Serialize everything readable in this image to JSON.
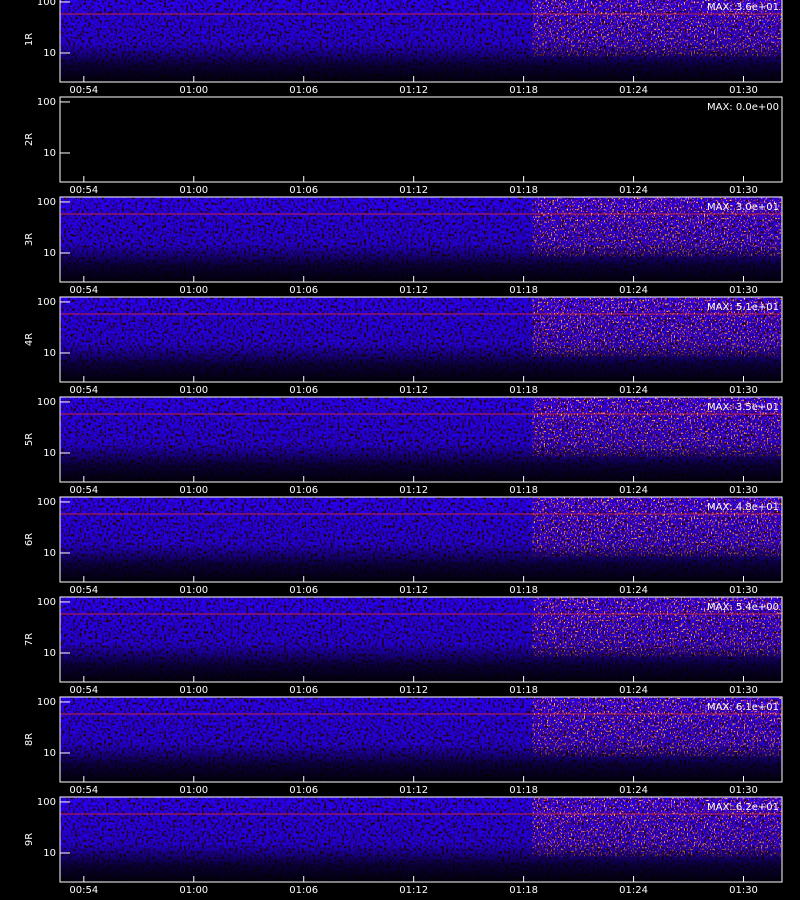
{
  "chart_data": [
    {
      "type": "spectrogram",
      "ylabel": "1R",
      "annotation": "MAX: 3.6e+01",
      "max_value": 36,
      "ylim": [
        2.7,
        125
      ],
      "yticks": [
        10,
        100
      ],
      "log_y": true,
      "xlim": [
        52.7,
        92.1
      ],
      "xticks": [
        {
          "value": 54,
          "label": "00:54"
        },
        {
          "value": 60,
          "label": "01:00"
        },
        {
          "value": 66,
          "label": "01:06"
        },
        {
          "value": 72,
          "label": "01:12"
        },
        {
          "value": 78,
          "label": "01:18"
        },
        {
          "value": 84,
          "label": "01:24"
        },
        {
          "value": 90,
          "label": "01:30"
        }
      ]
    },
    {
      "type": "spectrogram",
      "ylabel": "2R",
      "annotation": "MAX: 0.0e+00",
      "max_value": 0,
      "ylim": [
        2.7,
        125
      ],
      "yticks": [
        10,
        100
      ],
      "log_y": true,
      "xlim": [
        52.7,
        92.1
      ],
      "xticks": [
        {
          "value": 54,
          "label": "00:54"
        },
        {
          "value": 60,
          "label": "01:00"
        },
        {
          "value": 66,
          "label": "01:06"
        },
        {
          "value": 72,
          "label": "01:12"
        },
        {
          "value": 78,
          "label": "01:18"
        },
        {
          "value": 84,
          "label": "01:24"
        },
        {
          "value": 90,
          "label": "01:30"
        }
      ]
    },
    {
      "type": "spectrogram",
      "ylabel": "3R",
      "annotation": "MAX: 3.0e+01",
      "max_value": 30,
      "ylim": [
        2.7,
        125
      ],
      "yticks": [
        10,
        100
      ],
      "log_y": true,
      "xlim": [
        52.7,
        92.1
      ],
      "xticks": [
        {
          "value": 54,
          "label": "00:54"
        },
        {
          "value": 60,
          "label": "01:00"
        },
        {
          "value": 66,
          "label": "01:06"
        },
        {
          "value": 72,
          "label": "01:12"
        },
        {
          "value": 78,
          "label": "01:18"
        },
        {
          "value": 84,
          "label": "01:24"
        },
        {
          "value": 90,
          "label": "01:30"
        }
      ]
    },
    {
      "type": "spectrogram",
      "ylabel": "4R",
      "annotation": "MAX: 5.1e+01",
      "max_value": 51,
      "ylim": [
        2.7,
        125
      ],
      "yticks": [
        10,
        100
      ],
      "log_y": true,
      "xlim": [
        52.7,
        92.1
      ],
      "xticks": [
        {
          "value": 54,
          "label": "00:54"
        },
        {
          "value": 60,
          "label": "01:00"
        },
        {
          "value": 66,
          "label": "01:06"
        },
        {
          "value": 72,
          "label": "01:12"
        },
        {
          "value": 78,
          "label": "01:18"
        },
        {
          "value": 84,
          "label": "01:24"
        },
        {
          "value": 90,
          "label": "01:30"
        }
      ]
    },
    {
      "type": "spectrogram",
      "ylabel": "5R",
      "annotation": "MAX: 3.5e+01",
      "max_value": 35,
      "ylim": [
        2.7,
        125
      ],
      "yticks": [
        10,
        100
      ],
      "log_y": true,
      "xlim": [
        52.7,
        92.1
      ],
      "xticks": [
        {
          "value": 54,
          "label": "00:54"
        },
        {
          "value": 60,
          "label": "01:00"
        },
        {
          "value": 66,
          "label": "01:06"
        },
        {
          "value": 72,
          "label": "01:12"
        },
        {
          "value": 78,
          "label": "01:18"
        },
        {
          "value": 84,
          "label": "01:24"
        },
        {
          "value": 90,
          "label": "01:30"
        }
      ]
    },
    {
      "type": "spectrogram",
      "ylabel": "6R",
      "annotation": "MAX: 4.8e+01",
      "max_value": 48,
      "ylim": [
        2.7,
        125
      ],
      "yticks": [
        10,
        100
      ],
      "log_y": true,
      "xlim": [
        52.7,
        92.1
      ],
      "xticks": [
        {
          "value": 54,
          "label": "00:54"
        },
        {
          "value": 60,
          "label": "01:00"
        },
        {
          "value": 66,
          "label": "01:06"
        },
        {
          "value": 72,
          "label": "01:12"
        },
        {
          "value": 78,
          "label": "01:18"
        },
        {
          "value": 84,
          "label": "01:24"
        },
        {
          "value": 90,
          "label": "01:30"
        }
      ]
    },
    {
      "type": "spectrogram",
      "ylabel": "7R",
      "annotation": "MAX: 5.4e+00",
      "max_value": 5.4,
      "ylim": [
        2.7,
        125
      ],
      "yticks": [
        10,
        100
      ],
      "log_y": true,
      "xlim": [
        52.7,
        92.1
      ],
      "xticks": [
        {
          "value": 54,
          "label": "00:54"
        },
        {
          "value": 60,
          "label": "01:00"
        },
        {
          "value": 66,
          "label": "01:06"
        },
        {
          "value": 72,
          "label": "01:12"
        },
        {
          "value": 78,
          "label": "01:18"
        },
        {
          "value": 84,
          "label": "01:24"
        },
        {
          "value": 90,
          "label": "01:30"
        }
      ]
    },
    {
      "type": "spectrogram",
      "ylabel": "8R",
      "annotation": "MAX: 6.1e+01",
      "max_value": 61,
      "ylim": [
        2.7,
        125
      ],
      "yticks": [
        10,
        100
      ],
      "log_y": true,
      "xlim": [
        52.7,
        92.1
      ],
      "xticks": [
        {
          "value": 54,
          "label": "00:54"
        },
        {
          "value": 60,
          "label": "01:00"
        },
        {
          "value": 66,
          "label": "01:06"
        },
        {
          "value": 72,
          "label": "01:12"
        },
        {
          "value": 78,
          "label": "01:18"
        },
        {
          "value": 84,
          "label": "01:24"
        },
        {
          "value": 90,
          "label": "01:30"
        }
      ]
    },
    {
      "type": "spectrogram",
      "ylabel": "9R",
      "annotation": "MAX: 6.2e+01",
      "max_value": 62,
      "ylim": [
        2.7,
        125
      ],
      "yticks": [
        10,
        100
      ],
      "log_y": true,
      "xlim": [
        52.7,
        92.1
      ],
      "xticks": [
        {
          "value": 54,
          "label": "00:54"
        },
        {
          "value": 60,
          "label": "01:00"
        },
        {
          "value": 66,
          "label": "01:06"
        },
        {
          "value": 72,
          "label": "01:12"
        },
        {
          "value": 78,
          "label": "01:18"
        },
        {
          "value": 84,
          "label": "01:24"
        },
        {
          "value": 90,
          "label": "01:30"
        }
      ]
    }
  ]
}
